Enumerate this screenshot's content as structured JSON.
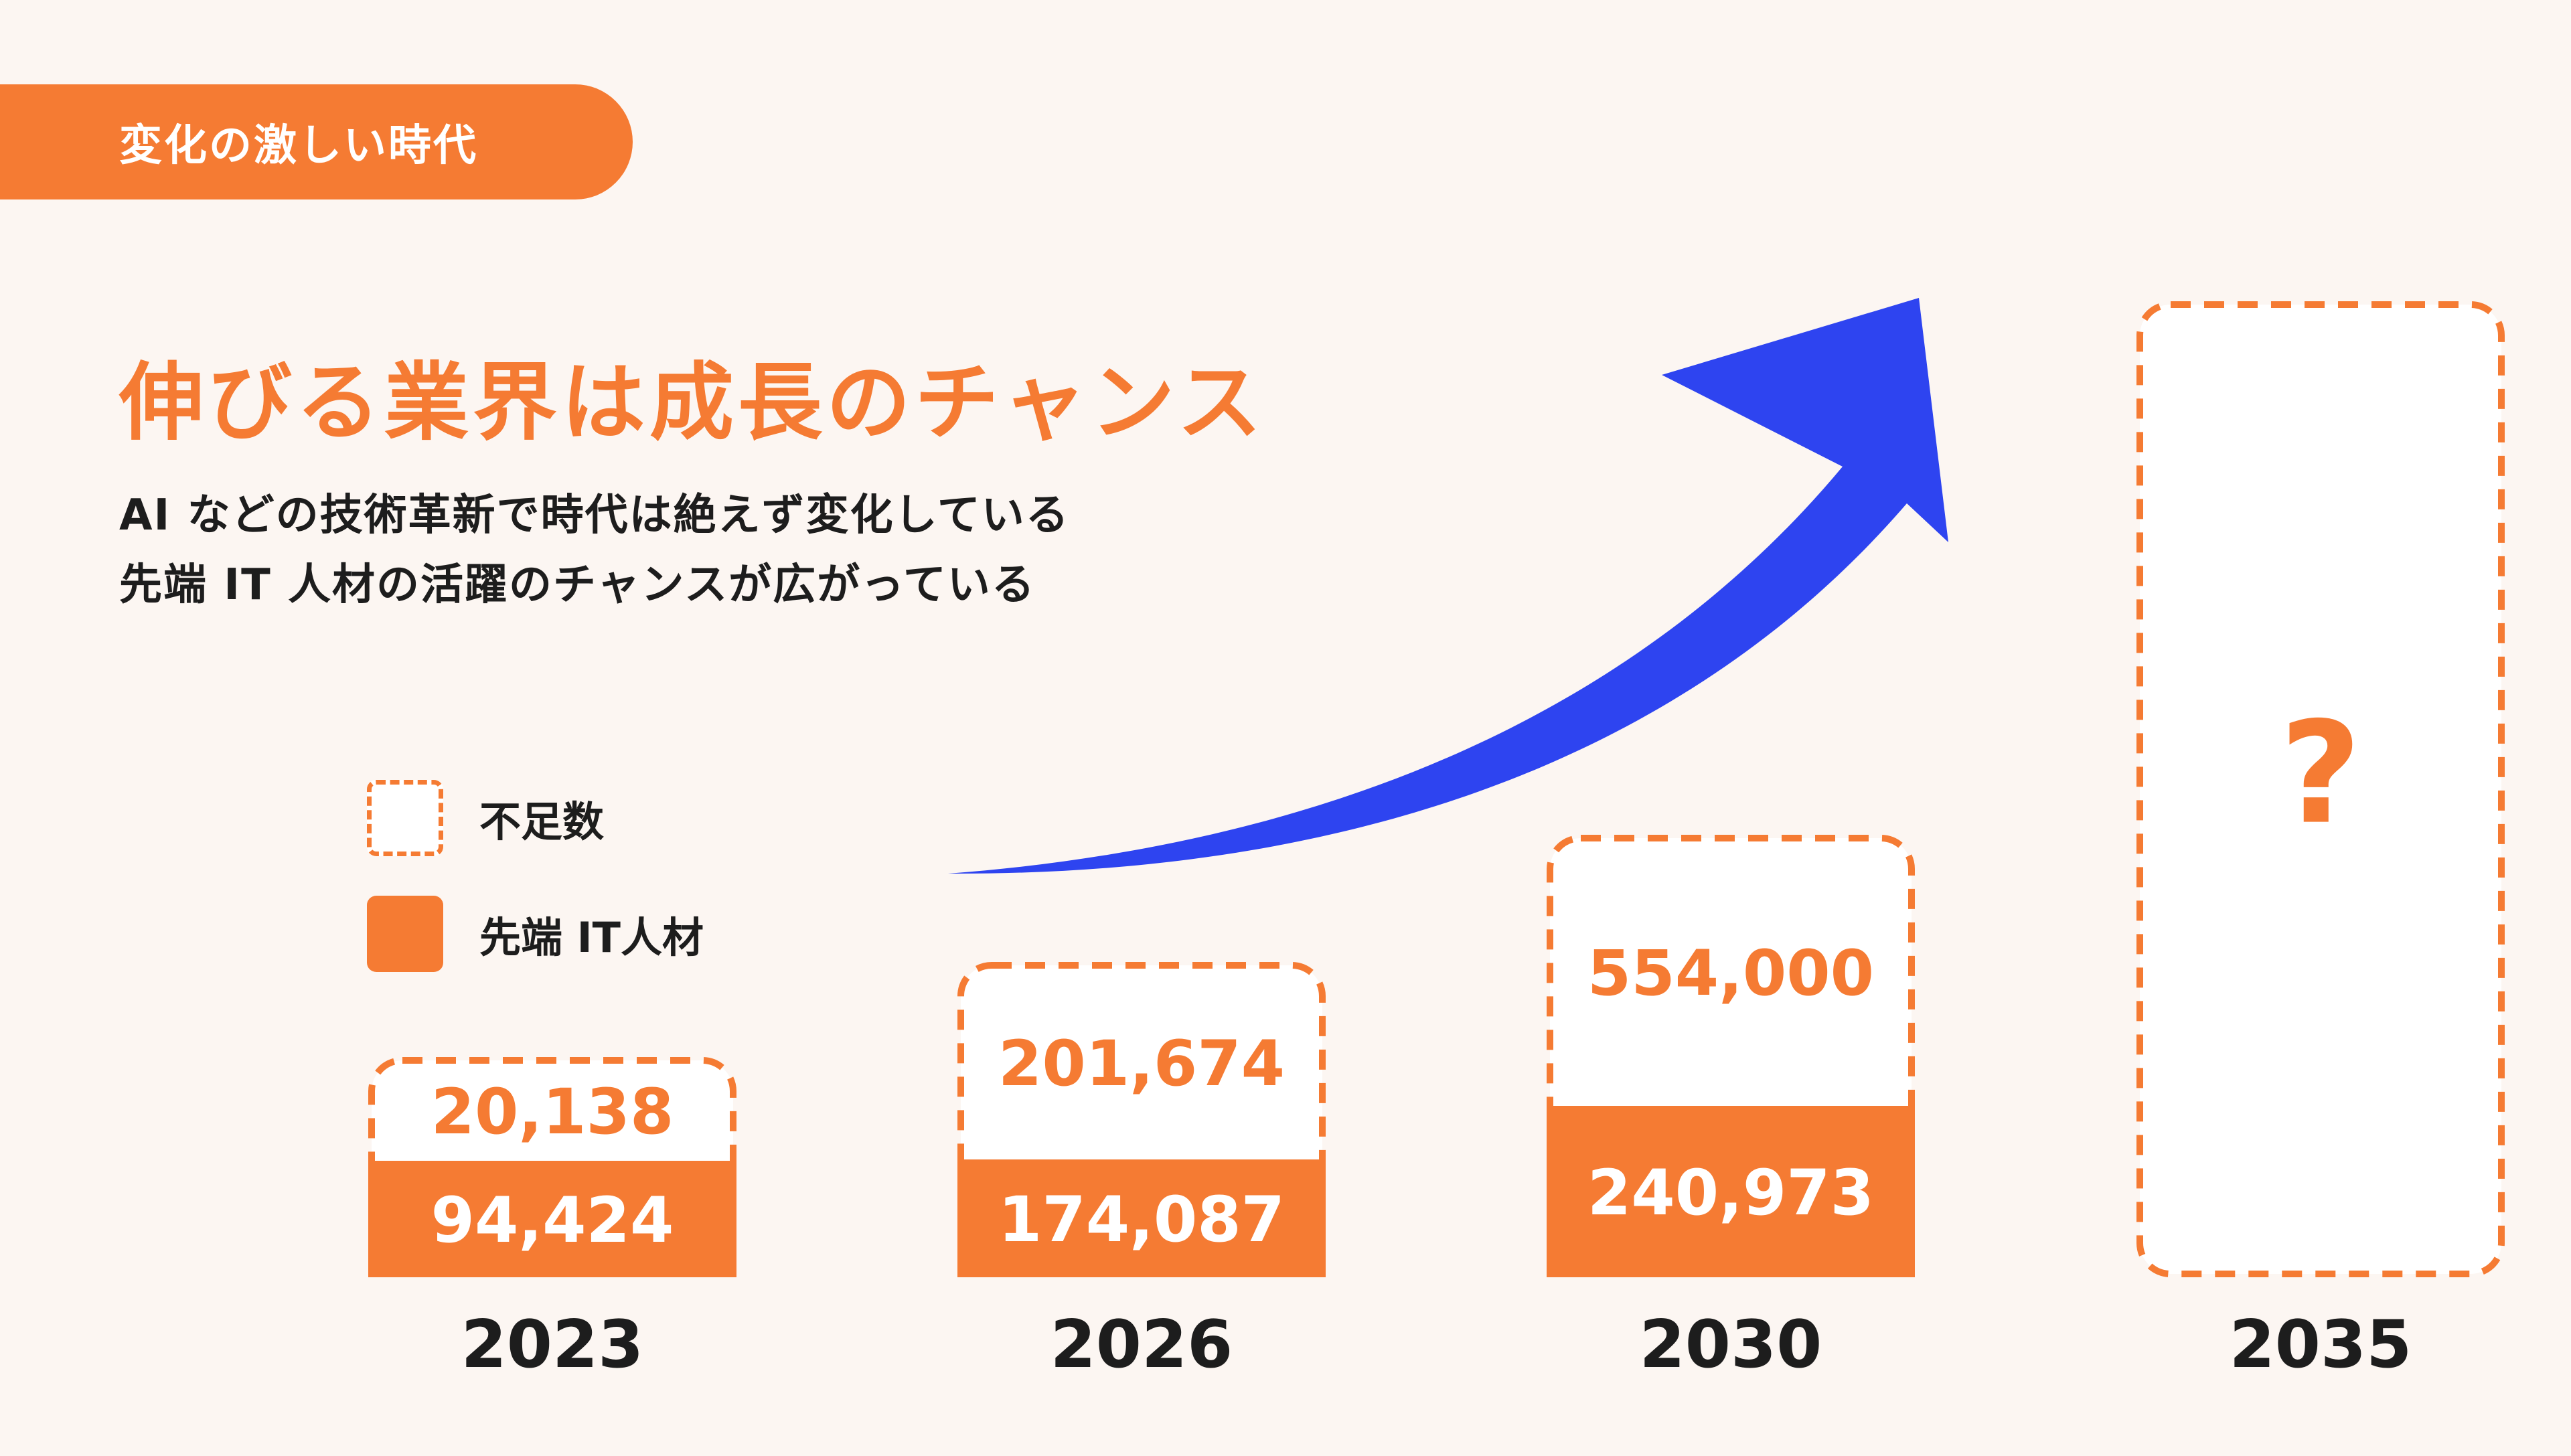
{
  "header": {
    "tag_label": "変化の激しい時代",
    "headline": "伸びる業界は成長のチャンス",
    "subtext_lines": [
      "AI などの技術革新で時代は絶えず変化している",
      "先端 IT 人材の活躍のチャンスが広がっている"
    ]
  },
  "legend": {
    "shortage_label": "不足数",
    "it_talent_label": "先端 IT人材"
  },
  "colors": {
    "accent": "#f57b33",
    "arrow": "#2e44f0",
    "background": "#fcf6f2",
    "text": "#1d1d1d"
  },
  "chart_data": {
    "type": "bar",
    "categories": [
      "2023",
      "2026",
      "2030",
      "2035"
    ],
    "series": [
      {
        "name": "先端 IT人材",
        "values": [
          94424,
          174087,
          240973,
          null
        ]
      },
      {
        "name": "不足数",
        "values": [
          20138,
          201674,
          554000,
          null
        ]
      }
    ],
    "data_labels": {
      "it_talent": [
        "94,424",
        "174,087",
        "240,973",
        ""
      ],
      "shortage": [
        "20,138",
        "201,674",
        "554,000",
        "?"
      ]
    },
    "stacked": true,
    "legend_position": "left",
    "grid": false,
    "trend_arrow": true
  }
}
